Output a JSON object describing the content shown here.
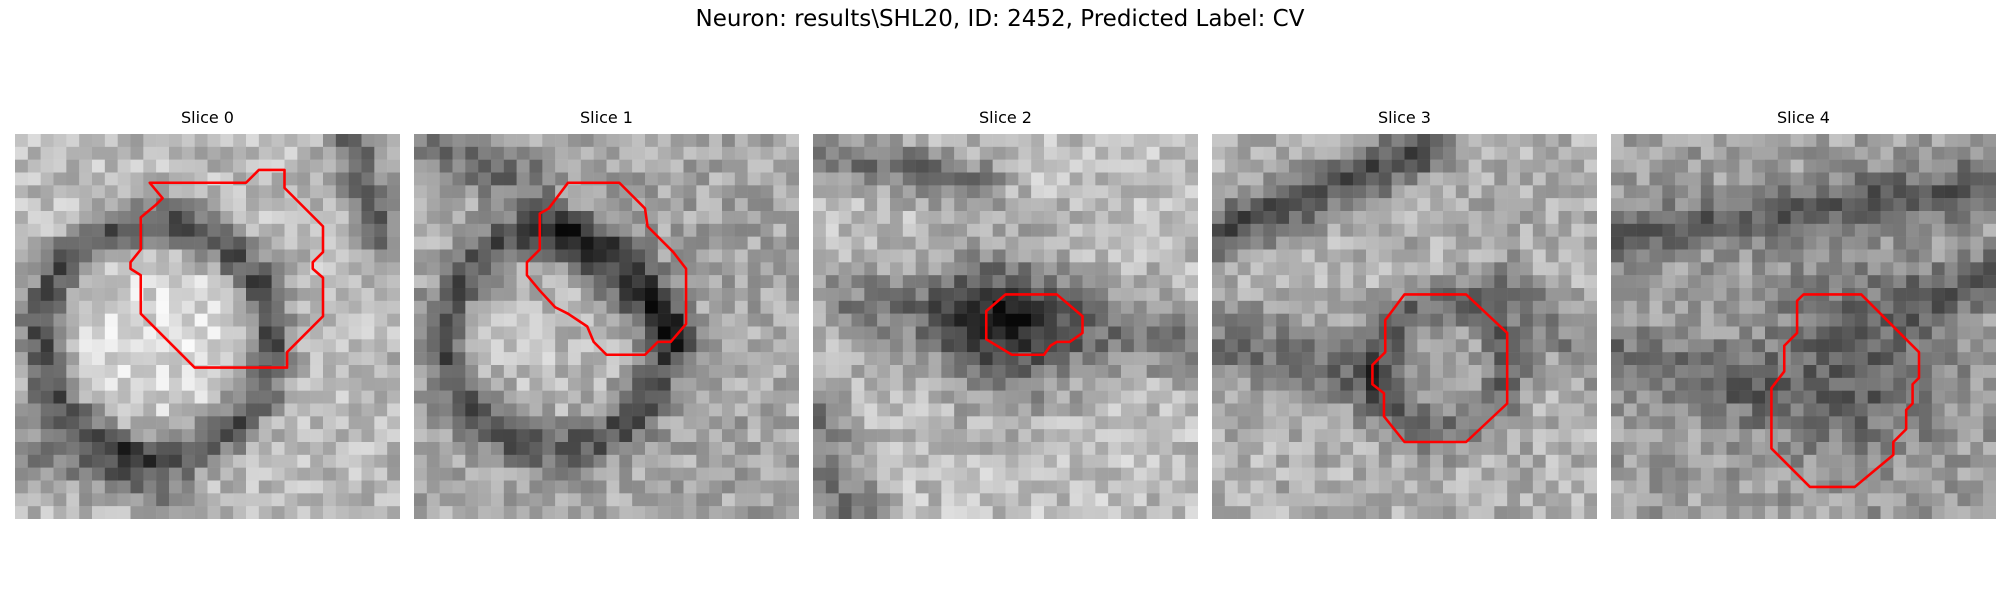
{
  "figure": {
    "title": "Neuron: results\\SHL20, ID: 2452, Predicted Label: CV"
  },
  "panels": [
    {
      "title": "Slice 0"
    },
    {
      "title": "Slice 1"
    },
    {
      "title": "Slice 2"
    },
    {
      "title": "Slice 3"
    },
    {
      "title": "Slice 4"
    }
  ],
  "colors": {
    "contour": "#ff0000",
    "background": "#ffffff"
  }
}
